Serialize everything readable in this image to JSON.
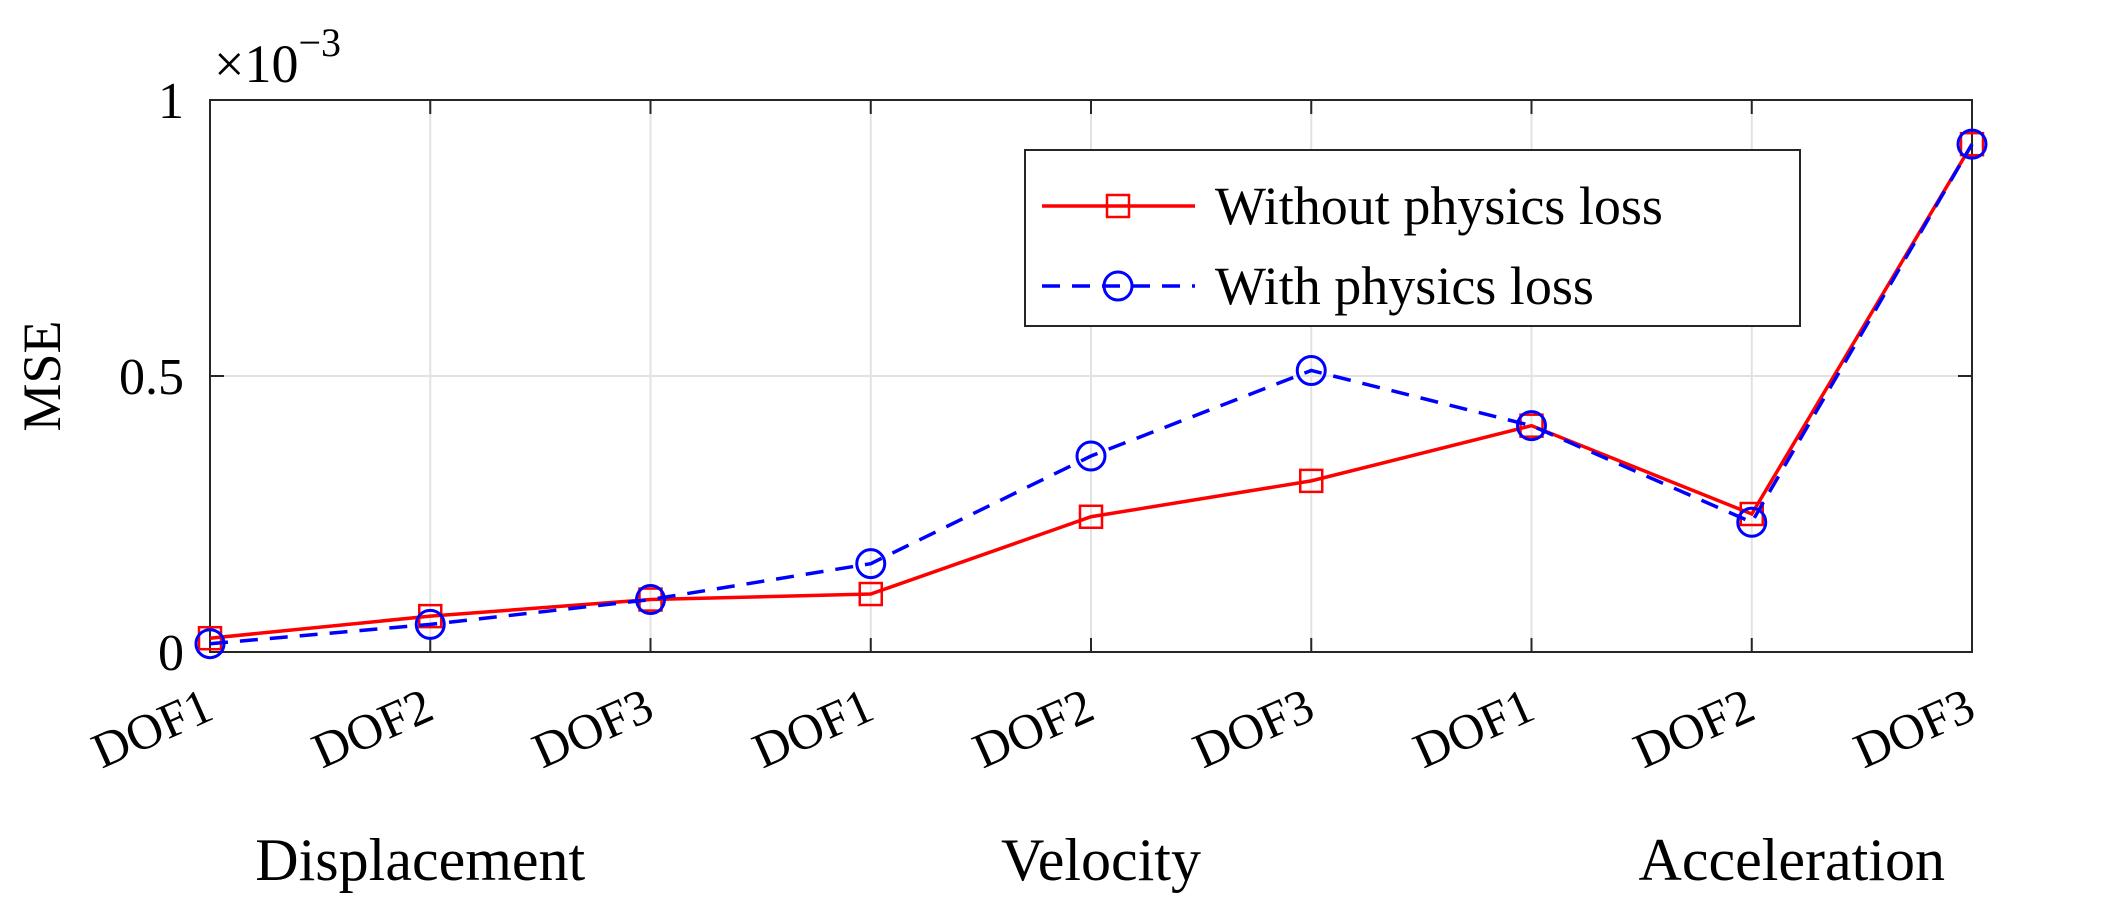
{
  "chart_data": {
    "type": "line",
    "categories": [
      "DOF1",
      "DOF2",
      "DOF3",
      "DOF1",
      "DOF2",
      "DOF3",
      "DOF1",
      "DOF2",
      "DOF3"
    ],
    "groups": [
      "Displacement",
      "Velocity",
      "Acceleration"
    ],
    "ylabel": "MSE",
    "scale_label_prefix": "×10",
    "scale_label_exp": "−3",
    "ylim": [
      0,
      1
    ],
    "yticks": [
      0,
      0.5,
      1
    ],
    "ytick_labels": [
      "0",
      "0.5",
      "1"
    ],
    "grid": true,
    "legend_position": "top-right",
    "series": [
      {
        "name": "Without physics loss",
        "color": "#ff0000",
        "line_style": "solid",
        "marker": "square",
        "values": [
          0.025,
          0.065,
          0.095,
          0.105,
          0.245,
          0.31,
          0.41,
          0.25,
          0.92
        ]
      },
      {
        "name": "With physics loss",
        "color": "#0000ff",
        "line_style": "dashed",
        "marker": "circle",
        "values": [
          0.015,
          0.05,
          0.095,
          0.16,
          0.355,
          0.51,
          0.41,
          0.235,
          0.92
        ]
      }
    ]
  }
}
